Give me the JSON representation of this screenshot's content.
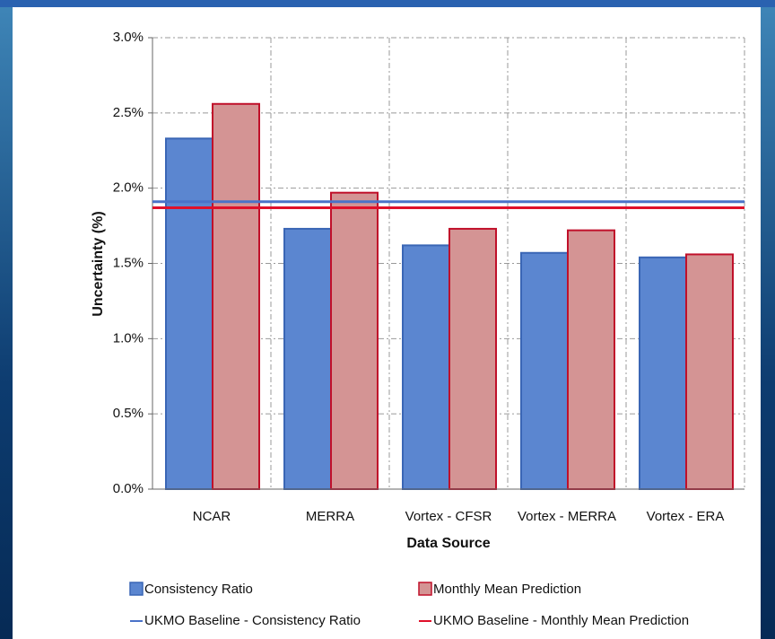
{
  "chart_data": {
    "type": "bar",
    "categories": [
      "NCAR",
      "MERRA",
      "Vortex - CFSR",
      "Vortex - MERRA",
      "Vortex - ERA"
    ],
    "series": [
      {
        "name": "Consistency Ratio",
        "color": "#5b86d0",
        "values": [
          2.33,
          1.73,
          1.62,
          1.57,
          1.54
        ]
      },
      {
        "name": "Monthly Mean Prediction",
        "color": "#d49494",
        "values": [
          2.56,
          1.97,
          1.73,
          1.72,
          1.56
        ]
      }
    ],
    "baselines": [
      {
        "name": "UKMO Baseline - Consistency Ratio",
        "color": "#4a72c8",
        "value": 1.91
      },
      {
        "name": "UKMO Baseline - Monthly Mean Prediction",
        "color": "#e0102a",
        "value": 1.87
      }
    ],
    "ylabel": "Uncertainty (%)",
    "xlabel": "Data Source",
    "ylim": [
      0,
      3
    ],
    "yticks": [
      {
        "value": 0,
        "label": "0.0%"
      },
      {
        "value": 0.5,
        "label": "0.5%"
      },
      {
        "value": 1,
        "label": "1.0%"
      },
      {
        "value": 1.5,
        "label": "1.5%"
      },
      {
        "value": 2,
        "label": "2.0%"
      },
      {
        "value": 2.5,
        "label": "2.5%"
      },
      {
        "value": 3,
        "label": "3.0%"
      }
    ],
    "grid": true
  }
}
